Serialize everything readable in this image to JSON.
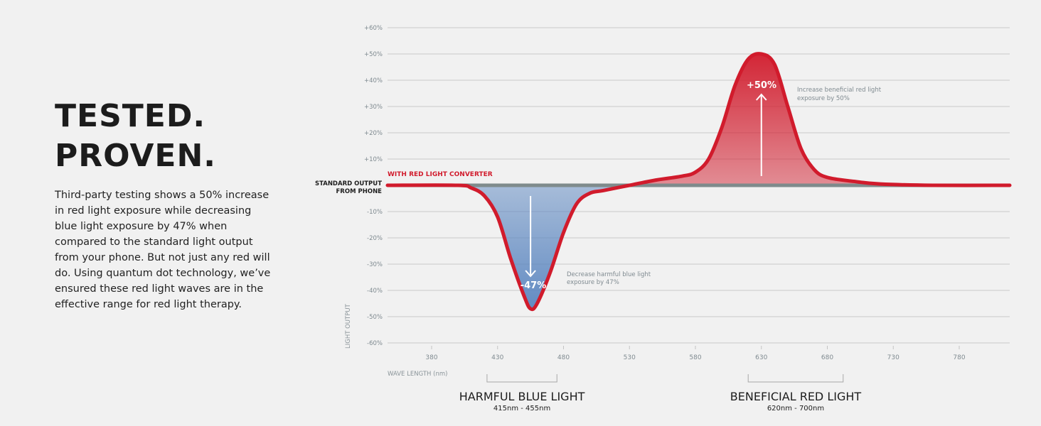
{
  "hero": {
    "title_line1": "TESTED.",
    "title_line2": "PROVEN.",
    "body": "Third-party testing shows a 50% increase in red light exposure while decreasing blue light exposure by 47% when compared to the standard light output from your phone. But not just any red will do. Using quantum dot technology, we’ve ensured these red light waves are in the effective range for red light therapy."
  },
  "colors": {
    "red": "#d11b2c",
    "blue": "#5b86c0",
    "baseline_gray": "#7f8b8c",
    "grid": "#c9c9c9"
  },
  "chart_data": {
    "type": "line",
    "xlabel": "WAVE LENGTH (nm)",
    "ylabel": "LIGHT OUTPUT",
    "x_ticks": [
      380,
      430,
      480,
      530,
      580,
      630,
      680,
      730,
      780
    ],
    "y_ticks": [
      60,
      50,
      40,
      30,
      20,
      10,
      0,
      -10,
      -20,
      -30,
      -40,
      -50,
      -60
    ],
    "y_tick_labels": [
      "+60%",
      "+50%",
      "+40%",
      "+30%",
      "+20%",
      "+10%",
      "",
      "-10%",
      "-20%",
      "-30%",
      "-40%",
      "-50%",
      "-60%"
    ],
    "xlim": [
      360,
      800
    ],
    "ylim": [
      -60,
      60
    ],
    "grid": true,
    "baseline_label_line1": "STANDARD OUTPUT",
    "baseline_label_line2": "FROM PHONE",
    "series": [
      {
        "name": "WITH RED LIGHT CONVERTER",
        "x": [
          360,
          400,
          410,
          420,
          430,
          440,
          450,
          455,
          460,
          470,
          480,
          490,
          500,
          510,
          530,
          550,
          570,
          580,
          590,
          600,
          610,
          620,
          630,
          640,
          650,
          660,
          670,
          680,
          700,
          720,
          760,
          800
        ],
        "y": [
          0,
          0,
          -1,
          -4,
          -12,
          -28,
          -42,
          -47,
          -45,
          -33,
          -18,
          -7,
          -3,
          -2,
          0,
          2,
          3.5,
          5,
          10,
          22,
          38,
          48,
          50,
          46,
          30,
          14,
          6,
          3,
          1.5,
          0.5,
          0,
          0
        ]
      }
    ],
    "peak_label": "+50%",
    "peak_annotation_line1": "Increase beneficial red light",
    "peak_annotation_line2": "exposure by 50%",
    "trough_label": "-47%",
    "trough_annotation_line1": "Decrease harmful blue light",
    "trough_annotation_line2": "exposure by 47%",
    "ranges": [
      {
        "title": "HARMFUL BLUE LIGHT",
        "subtitle": "415nm - 455nm",
        "bracket_x": [
          422,
          475
        ]
      },
      {
        "title": "BENEFICIAL RED LIGHT",
        "subtitle": "620nm - 700nm",
        "bracket_x": [
          620,
          692
        ]
      }
    ]
  }
}
